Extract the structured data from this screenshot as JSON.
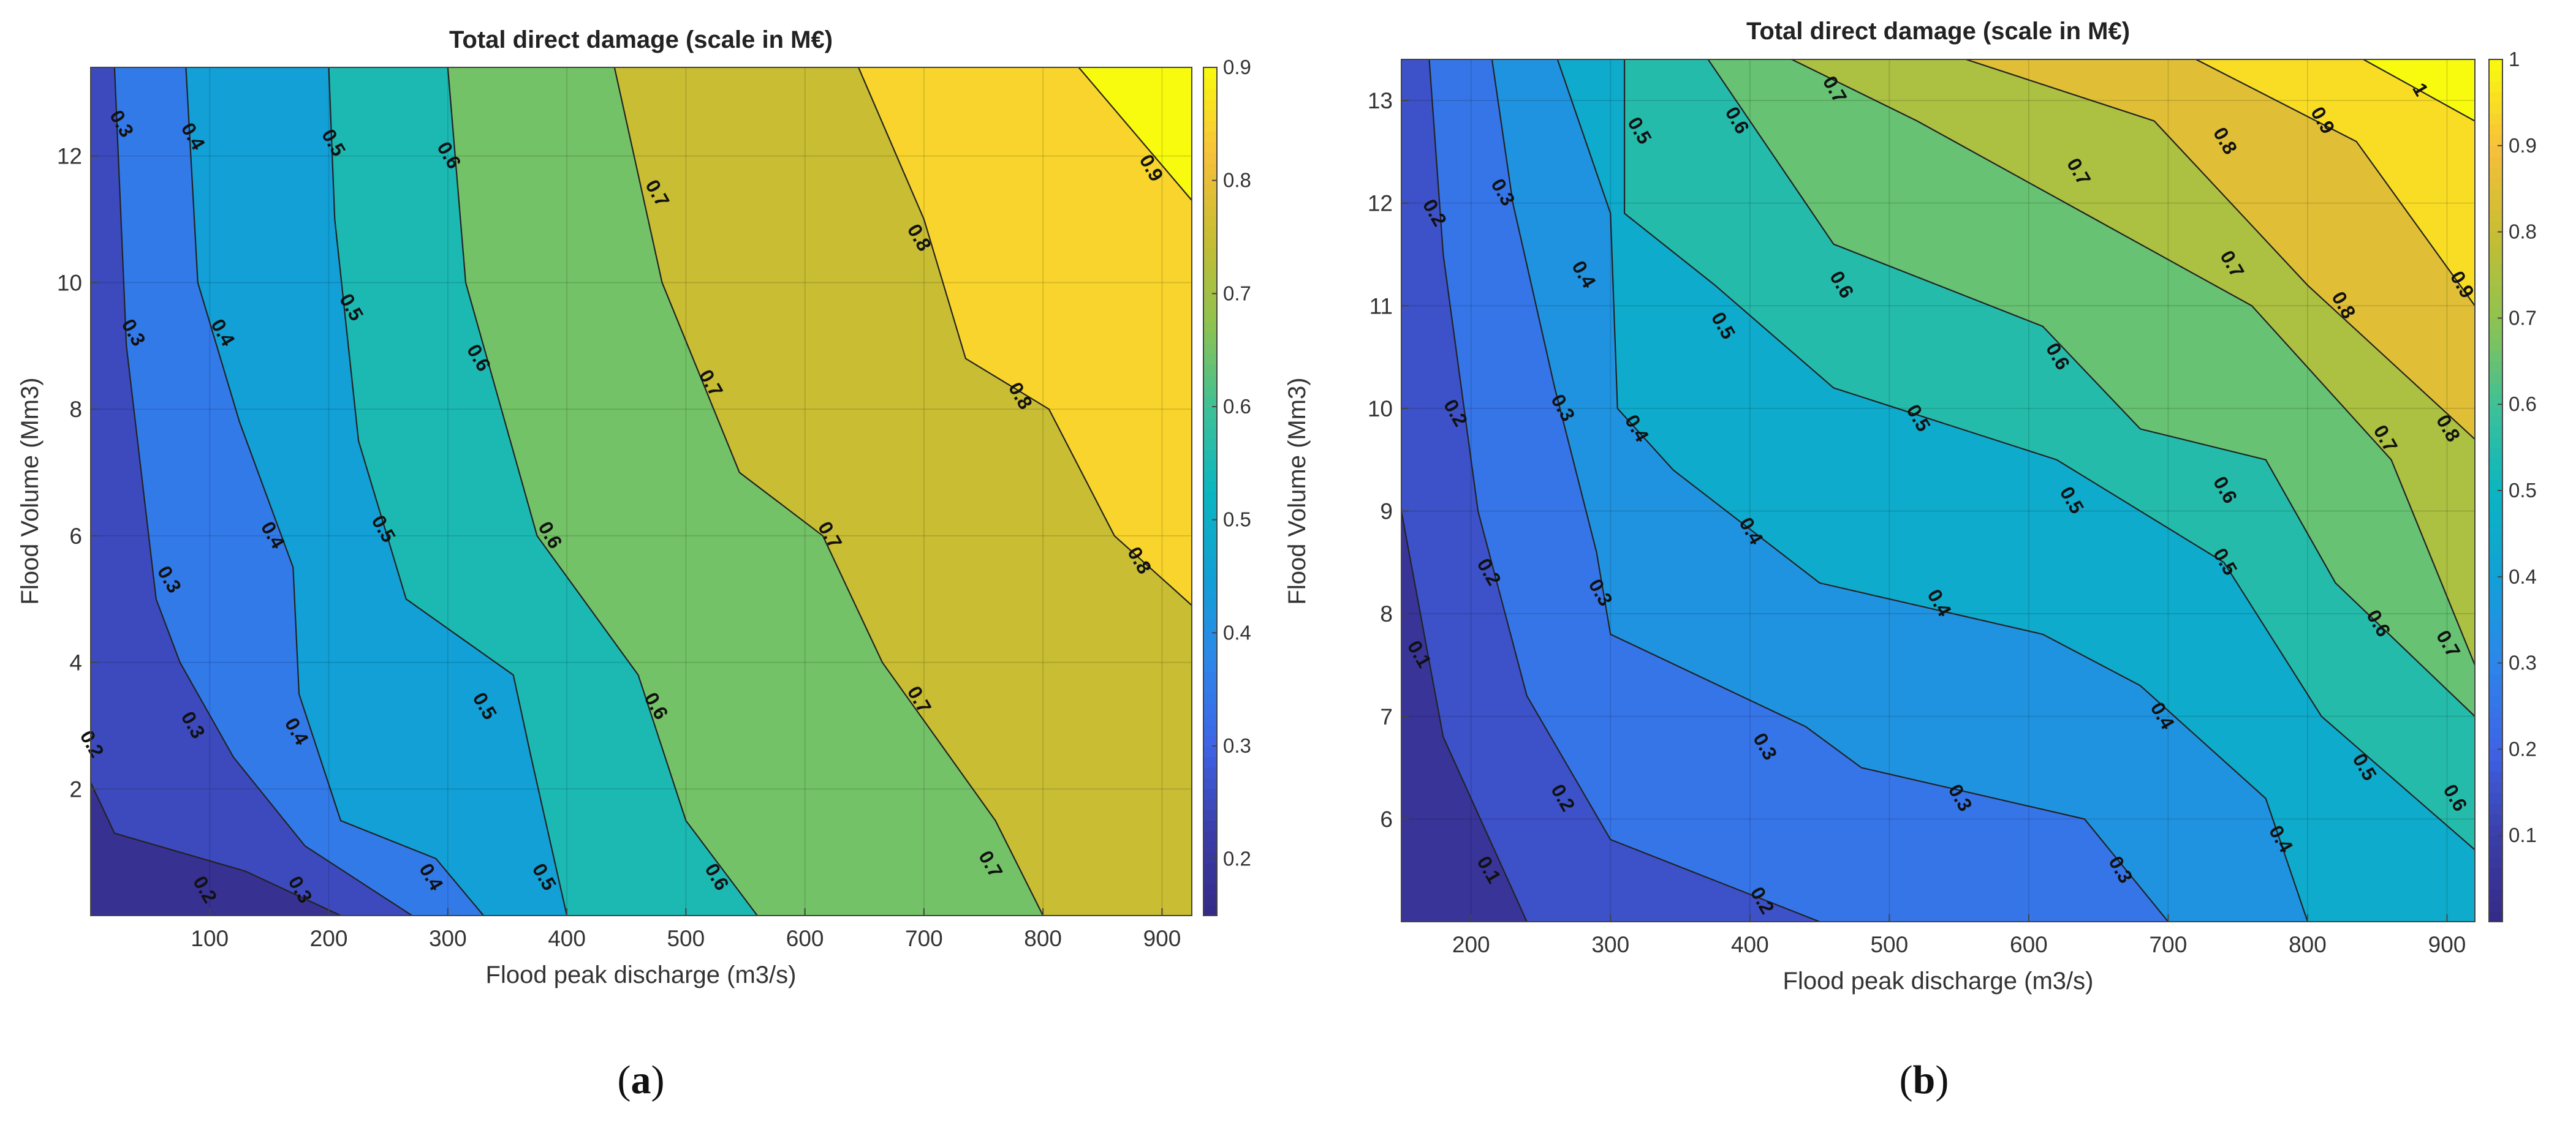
{
  "chart_data": [
    {
      "type": "contour",
      "panel": "(a)",
      "title": "Total direct damage (scale in M€)",
      "xlabel": "Flood peak discharge (m3/s)",
      "ylabel": "Flood Volume (Mm3)",
      "xlim": [
        0,
        925
      ],
      "ylim": [
        0,
        13.4
      ],
      "xticks": [
        100,
        200,
        300,
        400,
        500,
        600,
        700,
        800,
        900
      ],
      "yticks": [
        2,
        4,
        6,
        8,
        10,
        12
      ],
      "grid": true,
      "colorbar": {
        "position": "right",
        "range": [
          0.15,
          0.9
        ],
        "ticks": [
          0.2,
          0.3,
          0.4,
          0.5,
          0.6,
          0.7,
          0.8,
          0.9
        ]
      },
      "levels": [
        {
          "value": 0.2,
          "label": "0.2",
          "line": [
            [
              0,
              2.1
            ],
            [
              20,
              1.3
            ],
            [
              130,
              0.7
            ],
            [
              210,
              0
            ]
          ],
          "label_at": [
            [
              0,
              2.7
            ],
            [
              95,
              0.4
            ]
          ]
        },
        {
          "value": 0.3,
          "label": "0.3",
          "line": [
            [
              20,
              13.4
            ],
            [
              30,
              9
            ],
            [
              55,
              5
            ],
            [
              75,
              4
            ],
            [
              120,
              2.5
            ],
            [
              180,
              1.1
            ],
            [
              270,
              0
            ]
          ],
          "label_at": [
            [
              25,
              12.5
            ],
            [
              35,
              9.2
            ],
            [
              65,
              5.3
            ],
            [
              85,
              3
            ],
            [
              175,
              0.4
            ]
          ]
        },
        {
          "value": 0.4,
          "label": "0.4",
          "line": [
            [
              80,
              13.4
            ],
            [
              90,
              10
            ],
            [
              125,
              7.8
            ],
            [
              170,
              5.5
            ],
            [
              175,
              3.5
            ],
            [
              210,
              1.5
            ],
            [
              290,
              0.9
            ],
            [
              330,
              0
            ]
          ],
          "label_at": [
            [
              85,
              12.3
            ],
            [
              110,
              9.2
            ],
            [
              152,
              6
            ],
            [
              172,
              2.9
            ],
            [
              285,
              0.6
            ]
          ]
        },
        {
          "value": 0.5,
          "label": "0.5",
          "line": [
            [
              200,
              13.4
            ],
            [
              205,
              11
            ],
            [
              225,
              7.5
            ],
            [
              265,
              5
            ],
            [
              355,
              3.8
            ],
            [
              370,
              2.5
            ],
            [
              400,
              0
            ]
          ],
          "label_at": [
            [
              203,
              12.2
            ],
            [
              218,
              9.6
            ],
            [
              245,
              6.1
            ],
            [
              330,
              3.3
            ],
            [
              380,
              0.6
            ]
          ]
        },
        {
          "value": 0.6,
          "label": "0.6",
          "line": [
            [
              300,
              13.4
            ],
            [
              315,
              10
            ],
            [
              375,
              6
            ],
            [
              460,
              3.8
            ],
            [
              500,
              1.5
            ],
            [
              560,
              0
            ]
          ],
          "label_at": [
            [
              300,
              12
            ],
            [
              325,
              8.8
            ],
            [
              385,
              6
            ],
            [
              474,
              3.3
            ],
            [
              525,
              0.6
            ]
          ]
        },
        {
          "value": 0.7,
          "label": "0.7",
          "line": [
            [
              440,
              13.4
            ],
            [
              480,
              10
            ],
            [
              545,
              7
            ],
            [
              615,
              6
            ],
            [
              665,
              4
            ],
            [
              760,
              1.5
            ],
            [
              800,
              0
            ]
          ],
          "label_at": [
            [
              475,
              11.4
            ],
            [
              520,
              8.4
            ],
            [
              620,
              6
            ],
            [
              695,
              3.4
            ],
            [
              755,
              0.8
            ]
          ]
        },
        {
          "value": 0.8,
          "label": "0.8",
          "line": [
            [
              645,
              13.4
            ],
            [
              700,
              11
            ],
            [
              735,
              8.8
            ],
            [
              805,
              8
            ],
            [
              860,
              6
            ],
            [
              925,
              4.9
            ]
          ],
          "label_at": [
            [
              695,
              10.7
            ],
            [
              780,
              8.2
            ],
            [
              880,
              5.6
            ]
          ]
        },
        {
          "value": 0.9,
          "label": "0.9",
          "line": [
            [
              830,
              13.4
            ],
            [
              925,
              11.3
            ]
          ],
          "label_at": [
            [
              890,
              11.8
            ]
          ]
        }
      ]
    },
    {
      "type": "contour",
      "panel": "(b)",
      "title": "Total direct damage (scale in M€)",
      "xlabel": "Flood peak discharge (m3/s)",
      "ylabel": "Flood Volume (Mm3)",
      "xlim": [
        150,
        920
      ],
      "ylim": [
        5,
        13.4
      ],
      "xticks": [
        200,
        300,
        400,
        500,
        600,
        700,
        800,
        900
      ],
      "yticks": [
        6,
        7,
        8,
        9,
        10,
        11,
        12,
        13
      ],
      "grid": true,
      "colorbar": {
        "position": "right",
        "range": [
          0,
          1
        ],
        "ticks": [
          0.1,
          0.2,
          0.3,
          0.4,
          0.5,
          0.6,
          0.7,
          0.8,
          0.9,
          1
        ]
      },
      "levels": [
        {
          "value": 0.1,
          "label": "0.1",
          "line": [
            [
              150,
              9
            ],
            [
              180,
              6.8
            ],
            [
              200,
              6.2
            ],
            [
              240,
              5
            ]
          ],
          "label_at": [
            [
              162,
              7.6
            ],
            [
              212,
              5.5
            ]
          ]
        },
        {
          "value": 0.2,
          "label": "0.2",
          "line": [
            [
              170,
              13.4
            ],
            [
              180,
              11.5
            ],
            [
              205,
              9
            ],
            [
              240,
              7.2
            ],
            [
              300,
              5.8
            ],
            [
              450,
              5
            ]
          ],
          "label_at": [
            [
              173,
              11.9
            ],
            [
              188,
              9.95
            ],
            [
              212,
              8.4
            ],
            [
              265,
              6.2
            ],
            [
              408,
              5.2
            ]
          ]
        },
        {
          "value": 0.3,
          "label": "0.3",
          "line": [
            [
              215,
              13.4
            ],
            [
              230,
              12
            ],
            [
              260,
              10.2
            ],
            [
              290,
              8.6
            ],
            [
              300,
              7.8
            ],
            [
              440,
              6.9
            ],
            [
              480,
              6.5
            ],
            [
              640,
              6
            ],
            [
              700,
              5
            ]
          ],
          "label_at": [
            [
              222,
              12.1
            ],
            [
              265,
              10
            ],
            [
              292,
              8.2
            ],
            [
              410,
              6.7
            ],
            [
              550,
              6.2
            ],
            [
              665,
              5.5
            ]
          ]
        },
        {
          "value": 0.4,
          "label": "0.4",
          "line": [
            [
              262,
              13.4
            ],
            [
              300,
              11.9
            ],
            [
              305,
              10
            ],
            [
              345,
              9.4
            ],
            [
              450,
              8.3
            ],
            [
              610,
              7.8
            ],
            [
              680,
              7.3
            ],
            [
              770,
              6.2
            ],
            [
              800,
              5
            ]
          ],
          "label_at": [
            [
              280,
              11.3
            ],
            [
              318,
              9.8
            ],
            [
              400,
              8.8
            ],
            [
              535,
              8.1
            ],
            [
              695,
              7
            ],
            [
              780,
              5.8
            ]
          ]
        },
        {
          "value": 0.5,
          "label": "0.5",
          "line": [
            [
              310,
              13.4
            ],
            [
              310,
              11.9
            ],
            [
              375,
              11.2
            ],
            [
              460,
              10.2
            ],
            [
              620,
              9.5
            ],
            [
              740,
              8.5
            ],
            [
              810,
              7
            ],
            [
              920,
              5.7
            ]
          ],
          "label_at": [
            [
              320,
              12.7
            ],
            [
              380,
              10.8
            ],
            [
              520,
              9.9
            ],
            [
              630,
              9.1
            ],
            [
              740,
              8.5
            ],
            [
              840,
              6.5
            ]
          ]
        },
        {
          "value": 0.6,
          "label": "0.6",
          "line": [
            [
              370,
              13.4
            ],
            [
              460,
              11.6
            ],
            [
              610,
              10.8
            ],
            [
              680,
              9.8
            ],
            [
              770,
              9.5
            ],
            [
              820,
              8.3
            ],
            [
              920,
              7
            ]
          ],
          "label_at": [
            [
              390,
              12.8
            ],
            [
              465,
              11.2
            ],
            [
              620,
              10.5
            ],
            [
              740,
              9.2
            ],
            [
              850,
              7.9
            ],
            [
              905,
              6.2
            ]
          ]
        },
        {
          "value": 0.7,
          "label": "0.7",
          "line": [
            [
              430,
              13.4
            ],
            [
              520,
              12.8
            ],
            [
              640,
              11.9
            ],
            [
              760,
              11
            ],
            [
              860,
              9.5
            ],
            [
              920,
              7.5
            ]
          ],
          "label_at": [
            [
              460,
              13.1
            ],
            [
              635,
              12.3
            ],
            [
              745,
              11.4
            ],
            [
              855,
              9.7
            ],
            [
              900,
              7.7
            ]
          ]
        },
        {
          "value": 0.8,
          "label": "0.8",
          "line": [
            [
              555,
              13.4
            ],
            [
              690,
              12.8
            ],
            [
              800,
              11.2
            ],
            [
              920,
              9.7
            ]
          ],
          "label_at": [
            [
              740,
              12.6
            ],
            [
              825,
              11
            ],
            [
              900,
              9.8
            ]
          ]
        },
        {
          "value": 0.9,
          "label": "0.9",
          "line": [
            [
              720,
              13.4
            ],
            [
              835,
              12.6
            ],
            [
              920,
              11
            ]
          ],
          "label_at": [
            [
              810,
              12.8
            ],
            [
              910,
              11.2
            ]
          ]
        },
        {
          "value": 1,
          "label": "1",
          "line": [
            [
              840,
              13.4
            ],
            [
              920,
              12.8
            ]
          ],
          "label_at": [
            [
              880,
              13.1
            ]
          ]
        }
      ]
    }
  ]
}
